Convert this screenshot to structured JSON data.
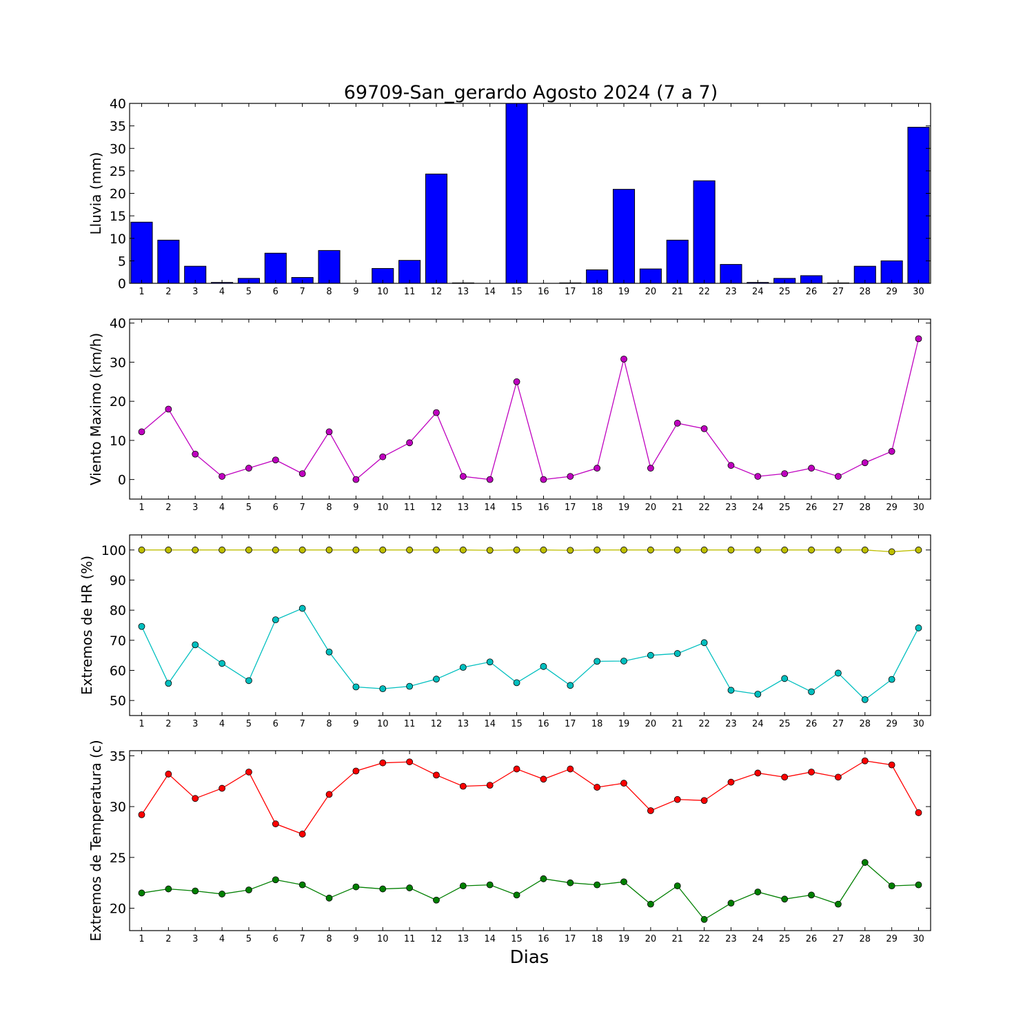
{
  "chart_data": {
    "title": "69709-San_gerardo Agosto 2024  (7 a 7)",
    "xlabel": "Dias",
    "days": [
      1,
      2,
      3,
      4,
      5,
      6,
      7,
      8,
      9,
      10,
      11,
      12,
      13,
      14,
      15,
      16,
      17,
      18,
      19,
      20,
      21,
      22,
      23,
      24,
      25,
      26,
      27,
      28,
      29,
      30
    ],
    "subplots": [
      {
        "type": "bar",
        "ylabel": "Lluvia (mm)",
        "ylim": [
          0,
          40
        ],
        "yticks": [
          0,
          5,
          10,
          15,
          20,
          25,
          30,
          35,
          40
        ],
        "series": [
          {
            "color": "#0000ff",
            "values": [
              13.6,
              9.6,
              3.8,
              0.2,
              1.1,
              6.7,
              1.3,
              7.3,
              0,
              3.3,
              5.1,
              24.3,
              0.1,
              0,
              40.5,
              0,
              0.1,
              3.0,
              20.9,
              3.2,
              9.6,
              22.8,
              4.2,
              0.2,
              1.1,
              1.7,
              0.1,
              3.8,
              5.0,
              34.7
            ]
          }
        ]
      },
      {
        "type": "line",
        "ylabel": "Viento Maximo (km/h)",
        "ylim": [
          -5,
          41
        ],
        "yticks": [
          0,
          10,
          20,
          30,
          40
        ],
        "series": [
          {
            "color": "#bf00bf",
            "values": [
              12.2,
              18.0,
              6.5,
              0.8,
              2.9,
              5.0,
              1.5,
              12.2,
              0.0,
              5.8,
              9.4,
              17.1,
              0.8,
              0.0,
              25.0,
              0.0,
              0.8,
              2.9,
              30.8,
              2.9,
              14.4,
              13.0,
              3.6,
              0.8,
              1.5,
              2.9,
              0.8,
              4.3,
              7.2,
              36.0
            ]
          }
        ]
      },
      {
        "type": "line",
        "ylabel": "Extremos de HR (%)",
        "ylim": [
          45,
          105
        ],
        "yticks": [
          50,
          60,
          70,
          80,
          90,
          100
        ],
        "series": [
          {
            "color": "#bfbf00",
            "values": [
              100,
              100,
              100,
              100,
              100,
              100,
              100,
              100,
              100,
              100,
              100,
              100,
              100,
              99.9,
              100,
              100,
              99.9,
              100,
              100,
              100,
              100,
              100,
              100,
              100,
              100,
              100,
              100,
              100,
              99.4,
              100
            ]
          },
          {
            "color": "#00bfbf",
            "values": [
              74.6,
              55.7,
              68.5,
              62.3,
              56.6,
              76.8,
              80.6,
              66.1,
              54.5,
              53.9,
              54.7,
              57.1,
              61.0,
              62.8,
              55.9,
              61.3,
              55.0,
              63.0,
              63.1,
              65.0,
              65.6,
              69.2,
              53.4,
              52.1,
              57.3,
              52.9,
              59.1,
              50.3,
              57.0,
              74.1
            ]
          }
        ]
      },
      {
        "type": "line",
        "ylabel": "Extremos de Temperatura (c)",
        "ylim": [
          17.8,
          35.5
        ],
        "yticks": [
          20,
          25,
          30,
          35
        ],
        "series": [
          {
            "color": "#ff0000",
            "values": [
              29.2,
              33.2,
              30.8,
              31.8,
              33.4,
              28.3,
              27.3,
              31.2,
              33.5,
              34.3,
              34.4,
              33.1,
              32.0,
              32.1,
              33.7,
              32.7,
              33.7,
              31.9,
              32.3,
              29.6,
              30.7,
              30.6,
              32.4,
              33.3,
              32.9,
              33.4,
              32.9,
              34.5,
              34.1,
              29.4
            ]
          },
          {
            "color": "#007f00",
            "values": [
              21.5,
              21.9,
              21.7,
              21.4,
              21.8,
              22.8,
              22.3,
              21.0,
              22.1,
              21.9,
              22.0,
              20.8,
              22.2,
              22.3,
              21.3,
              22.9,
              22.5,
              22.3,
              22.6,
              20.4,
              22.2,
              18.9,
              20.5,
              21.6,
              20.9,
              21.3,
              20.4,
              24.5,
              22.2,
              22.3
            ]
          }
        ]
      }
    ]
  }
}
